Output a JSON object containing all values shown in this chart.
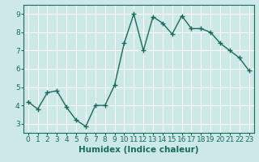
{
  "x": [
    0,
    1,
    2,
    3,
    4,
    5,
    6,
    7,
    8,
    9,
    10,
    11,
    12,
    13,
    14,
    15,
    16,
    17,
    18,
    19,
    20,
    21,
    22,
    23
  ],
  "y": [
    4.2,
    3.8,
    4.7,
    4.8,
    3.9,
    3.2,
    2.85,
    4.0,
    4.0,
    5.1,
    7.4,
    9.0,
    7.0,
    8.85,
    8.5,
    7.9,
    8.9,
    8.2,
    8.2,
    8.0,
    7.4,
    7.0,
    6.6,
    5.9
  ],
  "line_color": "#1a6b5a",
  "marker": "+",
  "bg_color": "#cce9e7",
  "grid_color": "#ffffff",
  "xlabel": "Humidex (Indice chaleur)",
  "xlabel_fontsize": 7.5,
  "tick_fontsize": 6.5,
  "xlim": [
    -0.5,
    23.5
  ],
  "ylim": [
    2.5,
    9.5
  ],
  "yticks": [
    3,
    4,
    5,
    6,
    7,
    8,
    9
  ],
  "xticks": [
    0,
    1,
    2,
    3,
    4,
    5,
    6,
    7,
    8,
    9,
    10,
    11,
    12,
    13,
    14,
    15,
    16,
    17,
    18,
    19,
    20,
    21,
    22,
    23
  ]
}
